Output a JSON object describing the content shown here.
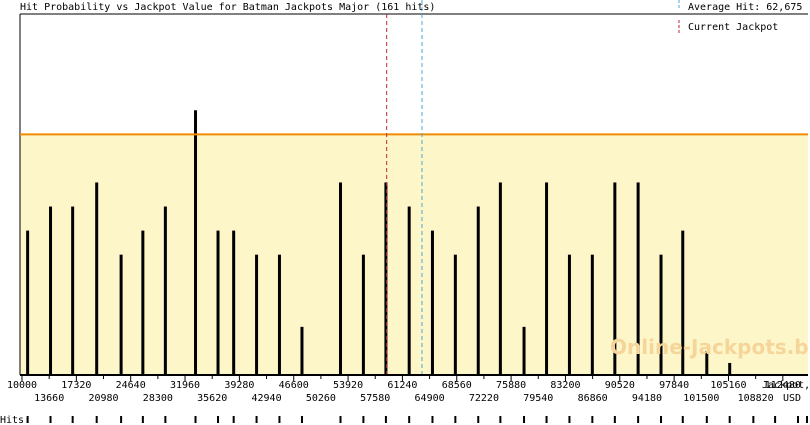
{
  "chart_data": {
    "type": "bar",
    "title": "Hit Probability vs Jackpot Value for Batman Jackpots Major (161 hits)",
    "average_label": "Average Hit: 62,675",
    "current_label": "Current Jackpot",
    "xlabel_line1": "Jackpot,",
    "xlabel_line2": "USD",
    "hits_label": "Hits:",
    "watermark": "Online-Jackpots.biz",
    "xlim": [
      10000,
      113130
    ],
    "average_hit": 62675,
    "current_jackpot": 58050,
    "threshold_level": 10,
    "ymax": 15,
    "tick_labels_top": [
      "10000",
      "17320",
      "24640",
      "31960",
      "39280",
      "46600",
      "53920",
      "61240",
      "68560",
      "75880",
      "83200",
      "90520",
      "97840",
      "105160",
      "112480"
    ],
    "tick_labels_bottom": [
      "13660",
      "20980",
      "28300",
      "35620",
      "42940",
      "50260",
      "57580",
      "64900",
      "72220",
      "79540",
      "86860",
      "94180",
      "101500",
      "108820"
    ],
    "x": [
      11000,
      14000,
      16900,
      20050,
      23250,
      26100,
      29050,
      33000,
      35950,
      38000,
      41000,
      44000,
      46950,
      52000,
      55000,
      57950,
      61000,
      64050,
      67050,
      70050,
      72950,
      76050,
      79000,
      82000,
      85000,
      87950,
      91000,
      94000,
      96850,
      100000,
      103000,
      106100,
      108950,
      111950,
      113130
    ],
    "values": [
      6,
      7,
      7,
      8,
      5,
      6,
      7,
      11,
      6,
      6,
      5,
      5,
      2,
      8,
      5,
      8,
      7,
      6,
      5,
      7,
      8,
      2,
      8,
      5,
      5,
      8,
      8,
      5,
      6,
      1,
      0.5,
      0,
      0,
      0,
      0
    ],
    "colors": {
      "bar": "#000000",
      "threshold_line": "#f08a00",
      "threshold_fill": "#fdf6c9",
      "average_line": "#4aa8d8",
      "current_line": "#c0263a",
      "axis": "#000000"
    }
  }
}
